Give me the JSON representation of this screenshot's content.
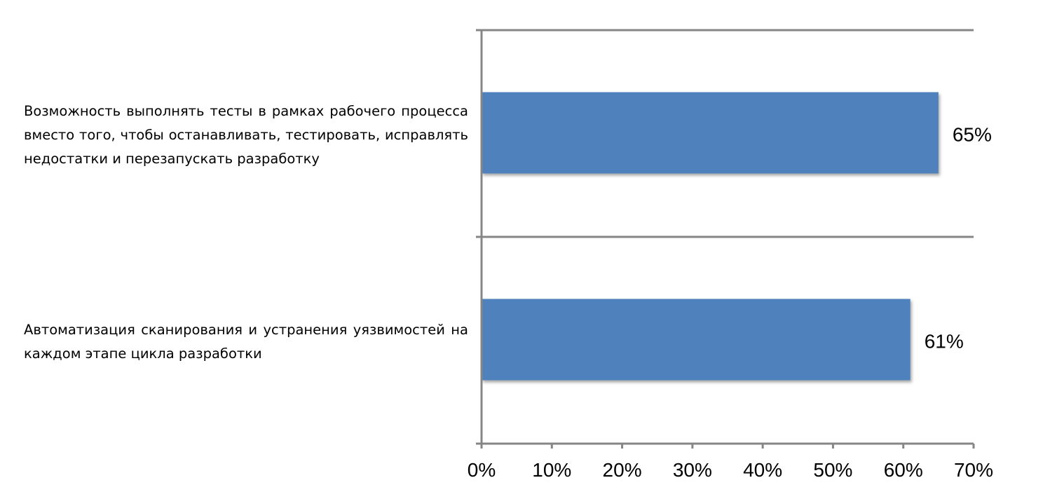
{
  "chart_data": {
    "type": "bar",
    "orientation": "horizontal",
    "categories": [
      "Возможность выполнять тесты в рамках рабочего процесса вместо того, чтобы останавливать, тестировать, исправлять недостатки и перезапускать разработку",
      "Автоматизация сканирования и устранения уязвимостей на каждом этапе цикла разработки"
    ],
    "values": [
      65,
      61
    ],
    "data_labels": [
      "65%",
      "61%"
    ],
    "xlim": [
      0,
      70
    ],
    "x_ticks": [
      0,
      10,
      20,
      30,
      40,
      50,
      60,
      70
    ],
    "x_tick_labels": [
      "0%",
      "10%",
      "20%",
      "30%",
      "40%",
      "50%",
      "60%",
      "70%"
    ],
    "grid": true,
    "bar_color": "#4f81bd",
    "axis_color": "#868686"
  }
}
